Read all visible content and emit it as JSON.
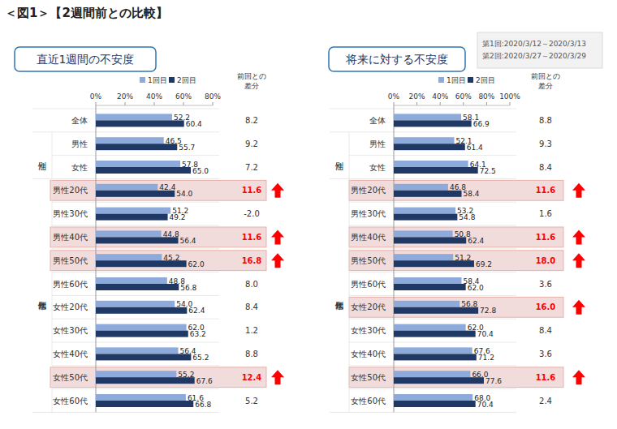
{
  "header": {
    "title": "＜図1＞【2週間前との比較】",
    "note": [
      "第1回:2020/3/12～2020/3/13",
      "第2回:2020/3/27～2020/3/29"
    ]
  },
  "chart_data": [
    {
      "type": "bar",
      "orientation": "horizontal",
      "title": "直近1週間の不安度",
      "categories": [
        "全体",
        "男性",
        "女性",
        "男性20代",
        "男性30代",
        "男性40代",
        "男性50代",
        "男性60代",
        "女性20代",
        "女性30代",
        "女性40代",
        "女性50代",
        "女性60代"
      ],
      "category_groups": [
        {
          "label": "性別",
          "categories": [
            "男性",
            "女性"
          ]
        },
        {
          "label": "性年代別",
          "categories": [
            "男性20代",
            "男性30代",
            "男性40代",
            "男性50代",
            "男性60代",
            "女性20代",
            "女性30代",
            "女性40代",
            "女性50代",
            "女性60代"
          ]
        }
      ],
      "series": [
        {
          "name": "1回目",
          "color": "#8eaadb",
          "values": [
            52.2,
            46.5,
            57.8,
            42.4,
            51.2,
            44.8,
            45.2,
            48.8,
            54.0,
            62.0,
            56.4,
            55.2,
            61.6
          ],
          "value_labels": [
            "52.2",
            "46.5",
            "57.8",
            "42.4",
            "51.2",
            "44.8",
            "45.2",
            "48.8",
            "54.0",
            "62.0",
            "56.4",
            "55.2",
            "61.6"
          ]
        },
        {
          "name": "2回目",
          "color": "#1f3864",
          "values": [
            60.4,
            55.7,
            65.0,
            54.0,
            49.2,
            56.4,
            62.0,
            56.8,
            62.4,
            63.2,
            65.2,
            67.6,
            66.8
          ],
          "value_labels": [
            "60.4",
            "55.7",
            "65.0",
            "54.0",
            "49.2",
            "56.4",
            "62.0",
            "56.8",
            "62.4",
            "63.2",
            "65.2",
            "67.6",
            "66.8"
          ]
        }
      ],
      "difference": {
        "label": [
          "前回との",
          "差分"
        ],
        "values": [
          8.2,
          9.2,
          7.2,
          11.6,
          -2.0,
          11.6,
          16.8,
          8.0,
          8.4,
          1.2,
          8.8,
          12.4,
          5.2
        ],
        "value_labels": [
          "8.2",
          "9.2",
          "7.2",
          "11.6",
          "-2.0",
          "11.6",
          "16.8",
          "8.0",
          "8.4",
          "1.2",
          "8.8",
          "12.4",
          "5.2"
        ],
        "highlight": [
          false,
          false,
          false,
          true,
          false,
          true,
          true,
          false,
          false,
          false,
          false,
          true,
          false
        ]
      },
      "xlim": [
        0,
        80
      ],
      "xticks": [
        {
          "value": 0,
          "label": "0%"
        },
        {
          "value": 20,
          "label": "20%"
        },
        {
          "value": 40,
          "label": "40%"
        },
        {
          "value": 60,
          "label": "60%"
        },
        {
          "value": 80,
          "label": "80%"
        }
      ],
      "grid": false,
      "data_labels": true,
      "legend": "top"
    },
    {
      "type": "bar",
      "orientation": "horizontal",
      "title": "将来に対する不安度",
      "categories": [
        "全体",
        "男性",
        "女性",
        "男性20代",
        "男性30代",
        "男性40代",
        "男性50代",
        "男性60代",
        "女性20代",
        "女性30代",
        "女性40代",
        "女性50代",
        "女性60代"
      ],
      "category_groups": [
        {
          "label": "性別",
          "categories": [
            "男性",
            "女性"
          ]
        },
        {
          "label": "性年代別",
          "categories": [
            "男性20代",
            "男性30代",
            "男性40代",
            "男性50代",
            "男性60代",
            "女性20代",
            "女性30代",
            "女性40代",
            "女性50代",
            "女性60代"
          ]
        }
      ],
      "series": [
        {
          "name": "1回目",
          "color": "#8eaadb",
          "values": [
            58.1,
            52.1,
            64.1,
            46.8,
            53.2,
            50.8,
            51.2,
            58.4,
            56.8,
            62.0,
            67.6,
            66.0,
            68.0
          ],
          "value_labels": [
            "58.1",
            "52.1",
            "64.1",
            "46.8",
            "53.2",
            "50.8",
            "51.2",
            "58.4",
            "56.8",
            "62.0",
            "67.6",
            "66.0",
            "68.0"
          ]
        },
        {
          "name": "2回目",
          "color": "#1f3864",
          "values": [
            66.9,
            61.4,
            72.5,
            58.4,
            54.8,
            62.4,
            69.2,
            62.0,
            72.8,
            70.4,
            71.2,
            77.6,
            70.4
          ],
          "value_labels": [
            "66.9",
            "61.4",
            "72.5",
            "58.4",
            "54.8",
            "62.4",
            "69.2",
            "62.0",
            "72.8",
            "70.4",
            "71.2",
            "77.6",
            "70.4"
          ]
        }
      ],
      "difference": {
        "label": [
          "前回との",
          "差分"
        ],
        "values": [
          8.8,
          9.3,
          8.4,
          11.6,
          1.6,
          11.6,
          18.0,
          3.6,
          16.0,
          8.4,
          3.6,
          11.6,
          2.4
        ],
        "value_labels": [
          "8.8",
          "9.3",
          "8.4",
          "11.6",
          "1.6",
          "11.6",
          "18.0",
          "3.6",
          "16.0",
          "8.4",
          "3.6",
          "11.6",
          "2.4"
        ],
        "highlight": [
          false,
          false,
          false,
          true,
          false,
          true,
          true,
          false,
          true,
          false,
          false,
          true,
          false
        ]
      },
      "xlim": [
        0,
        100
      ],
      "xticks": [
        {
          "value": 0,
          "label": "0%"
        },
        {
          "value": 20,
          "label": "20%"
        },
        {
          "value": 40,
          "label": "40%"
        },
        {
          "value": 60,
          "label": "60%"
        },
        {
          "value": 80,
          "label": "80%"
        },
        {
          "value": 100,
          "label": "100%"
        }
      ],
      "grid": false,
      "data_labels": true,
      "legend": "top"
    }
  ]
}
